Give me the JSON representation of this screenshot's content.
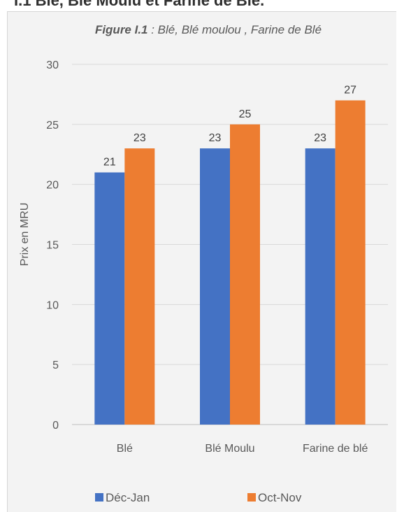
{
  "heading": "I.1 Blé, Blé Moulu et Farine de Blé.",
  "chart_data": {
    "type": "bar",
    "title_prefix": "Figure I.1",
    "title_suffix": " : Blé, Blé moulou , Farine de Blé",
    "ylabel": "Prix en MRU",
    "xlabel": "",
    "categories": [
      "Blé",
      "Blé Moulu",
      "Farine de blé"
    ],
    "series": [
      {
        "name": "Déc-Jan",
        "values": [
          21,
          23,
          23
        ],
        "color": "#4472c4"
      },
      {
        "name": "Oct-Nov",
        "values": [
          23,
          25,
          27
        ],
        "color": "#ed7d31"
      }
    ],
    "ylim": [
      0,
      30
    ],
    "yticks": [
      0,
      5,
      10,
      15,
      20,
      25,
      30
    ],
    "grid": true,
    "data_labels": true,
    "legend_position": "bottom"
  }
}
